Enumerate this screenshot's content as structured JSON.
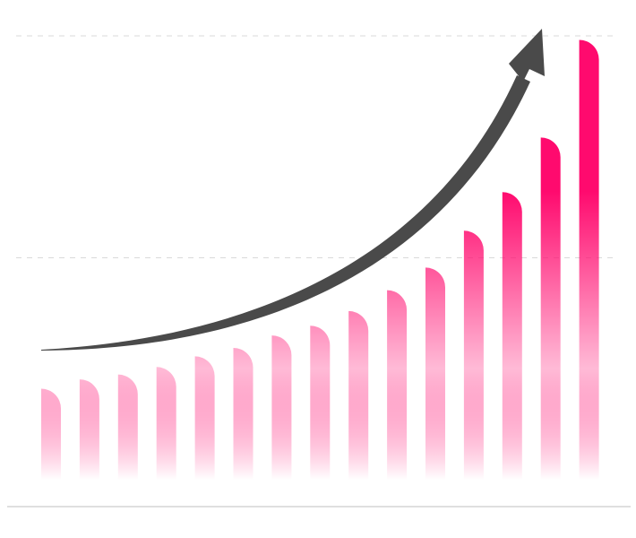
{
  "chart_data": {
    "type": "bar",
    "title": "",
    "xlabel": "",
    "ylabel": "",
    "categories": [
      "",
      "",
      "",
      "",
      "",
      "",
      "",
      "",
      "",
      "",
      "",
      "",
      "",
      "",
      ""
    ],
    "values": [
      20.5,
      22.6,
      23.7,
      25.4,
      27.8,
      29.7,
      32.5,
      34.7,
      38.0,
      42.7,
      47.8,
      56.1,
      64.8,
      77.1,
      99.1
    ],
    "ylim": [
      0,
      100
    ],
    "gridlines_at": [
      50,
      100
    ],
    "grid": true,
    "legend": "none",
    "bar_color_top": "#ff0a6e",
    "bar_color_bottom": "#ffffff",
    "trend_arrow": true,
    "trend_arrow_color": "#4a4a4a",
    "gridline_color": "#d9d9d9",
    "baseline_color": "#cccccc"
  }
}
